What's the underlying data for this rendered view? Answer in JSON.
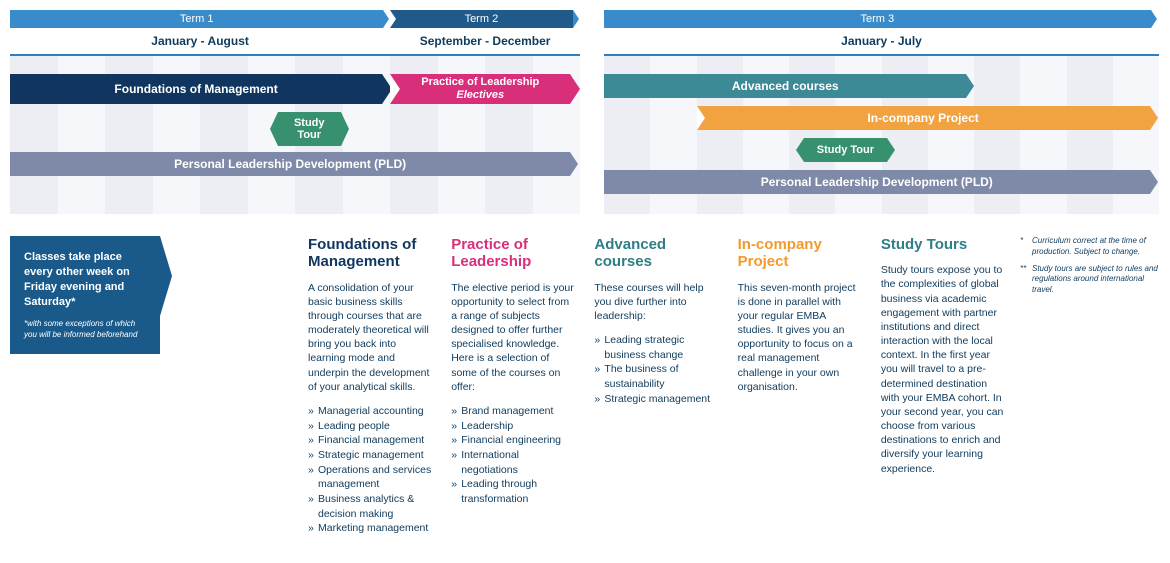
{
  "colors": {
    "term_header": "#3a8bc9",
    "foundations": "#10365f",
    "practice": "#d92f7a",
    "advanced": "#3c8a95",
    "in_company": "#f2a341",
    "pld": "#7f8aa8",
    "study_tour": "#37916f",
    "callout": "#1a5a8a",
    "grid_alt1": "#eceef3",
    "grid_alt2": "#f6f7fa",
    "text": "#0f3b5c",
    "heading_foundations": "#10365f",
    "heading_practice": "#d92f7a",
    "heading_advanced": "#2f7d87",
    "heading_incompany": "#f29a2e",
    "heading_studytours": "#2f7d87"
  },
  "timeline": {
    "left_months": 12,
    "right_months": 12,
    "terms": {
      "t1": {
        "label": "Term 1",
        "dates": "January - August",
        "start": 0,
        "span": 8
      },
      "t2": {
        "label": "Term 2",
        "dates": "September - December",
        "start": 8,
        "span": 4
      },
      "t3": {
        "label": "Term 3",
        "dates": "January - July",
        "start": 0,
        "span": 12
      }
    },
    "bars": {
      "foundations": {
        "label": "Foundations of Management",
        "start": 0,
        "span": 8,
        "side": "left",
        "row": 1,
        "color_key": "foundations"
      },
      "practice": {
        "label_html": "Practice of Leadership<br><em>Electives</em>",
        "start": 8,
        "span": 4,
        "side": "left",
        "row": 1,
        "color_key": "practice"
      },
      "study_tour_1": {
        "label_html": "Study<br>Tour",
        "start": 5.6,
        "span": 1.4,
        "side": "left",
        "row": 2,
        "type": "hex"
      },
      "pld_left": {
        "label": "Personal Leadership Development (PLD)",
        "start": 0,
        "span": 12,
        "side": "left",
        "row": 3,
        "color_key": "pld"
      },
      "advanced": {
        "label": "Advanced courses",
        "start": 0,
        "span": 8,
        "side": "right",
        "row": 1,
        "color_key": "advanced"
      },
      "in_company": {
        "label": "In-company Project",
        "start": 2,
        "span": 10,
        "side": "right",
        "row": 2,
        "color_key": "in_company"
      },
      "study_tour_2": {
        "label": "Study Tour",
        "start": 4.2,
        "span": 1.8,
        "side": "right",
        "row": 3,
        "type": "hex"
      },
      "pld_right": {
        "label": "Personal Leadership Development (PLD)",
        "start": 0,
        "span": 12,
        "side": "right",
        "row": 4,
        "color_key": "pld"
      }
    }
  },
  "callout": {
    "main": "Classes take place every other week on Friday evening and Saturday*",
    "foot": "*with some exceptions of which you will be informed beforehand"
  },
  "columns": {
    "foundations": {
      "title": "Foundations of Management",
      "desc": "A consolidation of your basic business skills through courses that are moderately theoretical will bring you back into learning mode and underpin the development of your analytical skills.",
      "items": [
        "Managerial accounting",
        "Leading people",
        "Financial management",
        "Strategic management",
        "Operations and services management",
        "Business analytics & decision making",
        "Marketing management"
      ]
    },
    "practice": {
      "title": "Practice of Leadership",
      "desc": "The elective period is your opportunity to select from a range of subjects designed to offer further specialised knowledge. Here is a selection of some of the courses on offer:",
      "items": [
        "Brand management",
        "Leadership",
        "Financial engineering",
        "International negotiations",
        "Leading through transformation"
      ]
    },
    "advanced": {
      "title": "Advanced courses",
      "desc": "These courses will help you dive further into leadership:",
      "items": [
        "Leading strategic business change",
        "The business of sustainability",
        "Strategic management"
      ]
    },
    "incompany": {
      "title": "In-company Project",
      "desc": "This seven-month project is done in parallel with your regular EMBA studies. It gives you an opportunity to focus on a real management challenge in your own organisation."
    },
    "studytours": {
      "title": "Study Tours",
      "desc": "Study tours expose you to the complexities of global business via academic engagement with partner institutions and direct interaction with the local context. In the first year you will travel to a pre-determined destination with your EMBA cohort. In your second year, you can choose from various destinations to enrich and diversify your learning experience."
    }
  },
  "footnotes": {
    "a": "Curriculum correct at the time of production. Subject to change.",
    "b": "Study tours are subject to rules and regulations around international travel."
  }
}
